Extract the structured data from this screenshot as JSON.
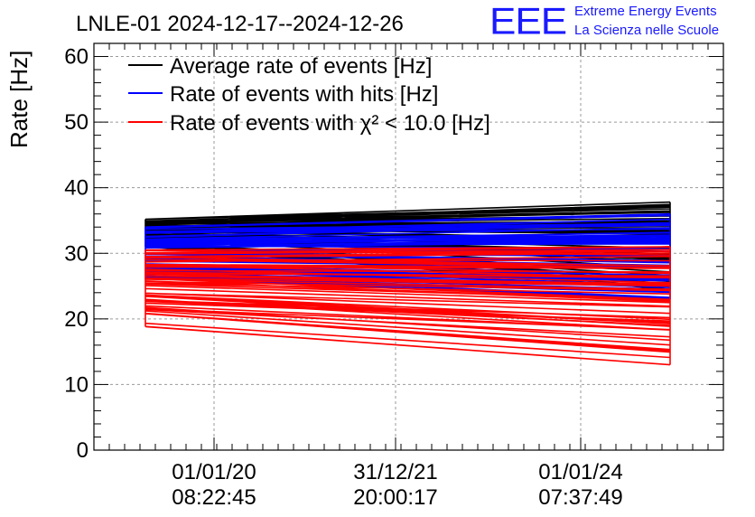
{
  "chart_data": {
    "type": "line",
    "title": "LNLE-01 2024-12-17--2024-12-26",
    "ylabel": "Rate [Hz]",
    "xlabel": "",
    "ylim": [
      0,
      62
    ],
    "yticks": [
      0,
      10,
      20,
      30,
      40,
      50,
      60
    ],
    "xtick_labels": [
      {
        "date": "01/01/20",
        "time": "08:22:45"
      },
      {
        "date": "31/12/21",
        "time": "20:00:17"
      },
      {
        "date": "01/01/24",
        "time": "07:37:49"
      }
    ],
    "grid": true,
    "legend_position": "top-left",
    "series": [
      {
        "name": "Average rate of events [Hz]",
        "color": "#000000",
        "range_start": [
          31.0,
          35.2
        ],
        "range_end": [
          24.5,
          37.8
        ]
      },
      {
        "name": "Rate of events with hits [Hz]",
        "color": "#0000ff",
        "range_start": [
          26.0,
          34.0
        ],
        "range_end": [
          23.0,
          36.0
        ]
      },
      {
        "name": "Rate of events with χ² < 10.0 [Hz]",
        "color": "#ff0000",
        "range_start": [
          18.8,
          30.5
        ],
        "range_end": [
          13.0,
          31.0
        ]
      }
    ]
  },
  "logo": {
    "mark": "EEE",
    "line1": "Extreme Energy Events",
    "line2": "La Scienza nelle Scuole"
  }
}
